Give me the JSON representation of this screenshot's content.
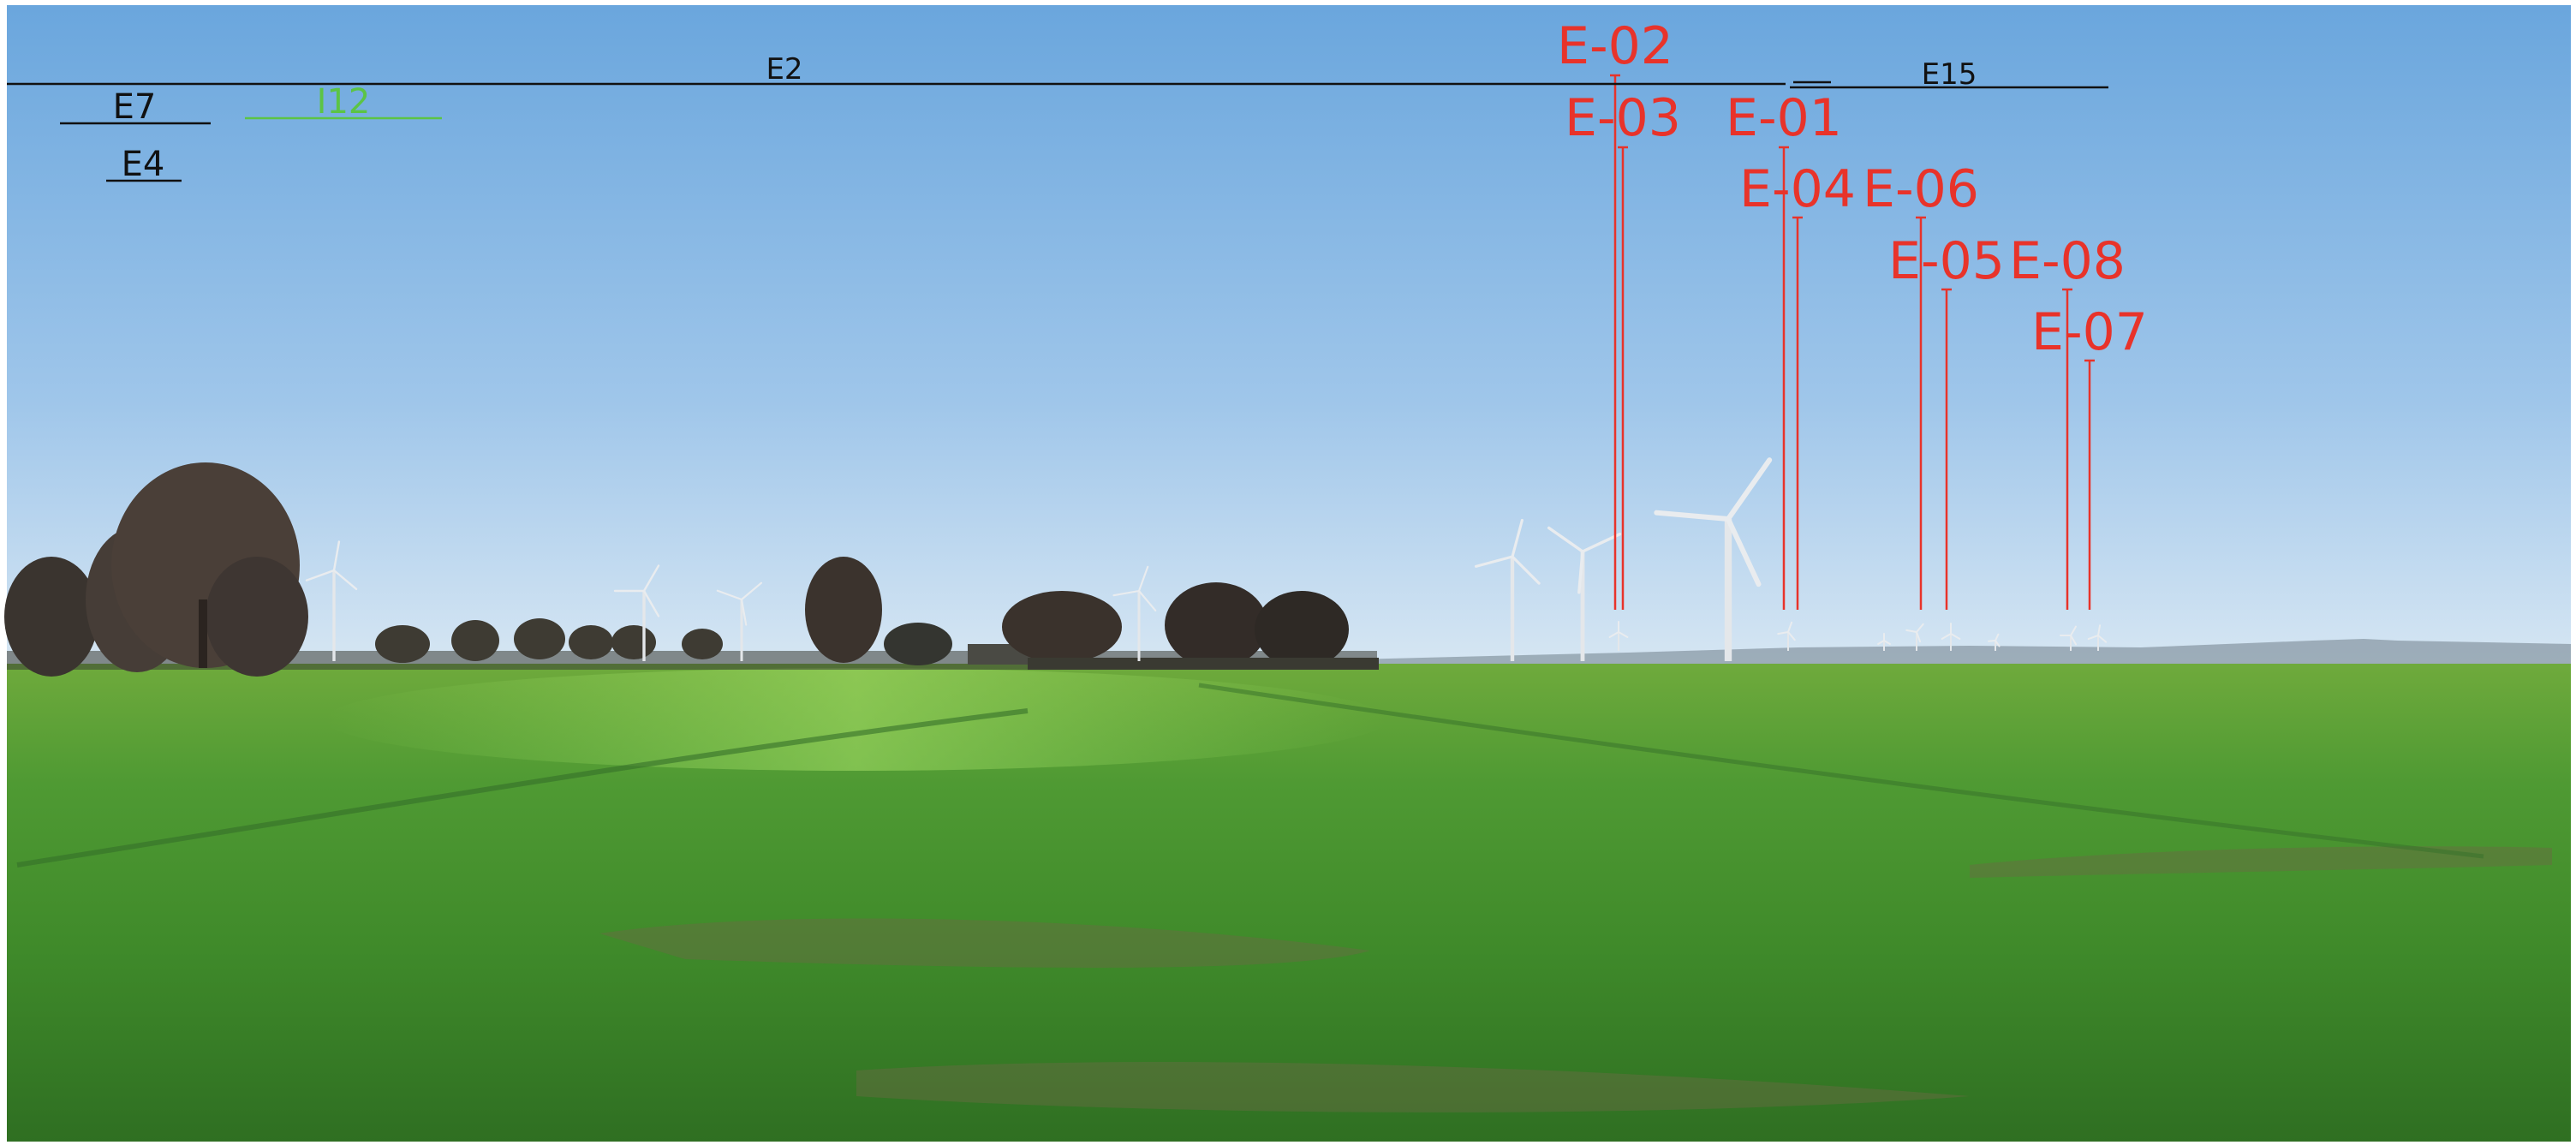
{
  "overlay_labels": {
    "existing": [
      {
        "text": "E2",
        "color": "#111111"
      },
      {
        "text": "E7",
        "color": "#111111"
      },
      {
        "text": "E4",
        "color": "#111111"
      },
      {
        "text": "I12",
        "color": "#5cc445"
      },
      {
        "text": "E15",
        "color": "#111111"
      }
    ],
    "planned": [
      {
        "text": "E-02",
        "color": "#e8332a"
      },
      {
        "text": "E-03",
        "color": "#e8332a"
      },
      {
        "text": "E-01",
        "color": "#e8332a"
      },
      {
        "text": "E-04",
        "color": "#e8332a"
      },
      {
        "text": "E-06",
        "color": "#e8332a"
      },
      {
        "text": "E-05",
        "color": "#e8332a"
      },
      {
        "text": "E-08",
        "color": "#e8332a"
      },
      {
        "text": "E-07",
        "color": "#e8332a"
      }
    ]
  },
  "colors": {
    "sky_top": "#6fa9de",
    "sky_horizon": "#cfe2f3",
    "field_near": "#3f8a2a",
    "field_far": "#7fbf4a",
    "planned_marker": "#e8332a",
    "existing_marker": "#111111",
    "turbine": "#e6e9ed"
  }
}
